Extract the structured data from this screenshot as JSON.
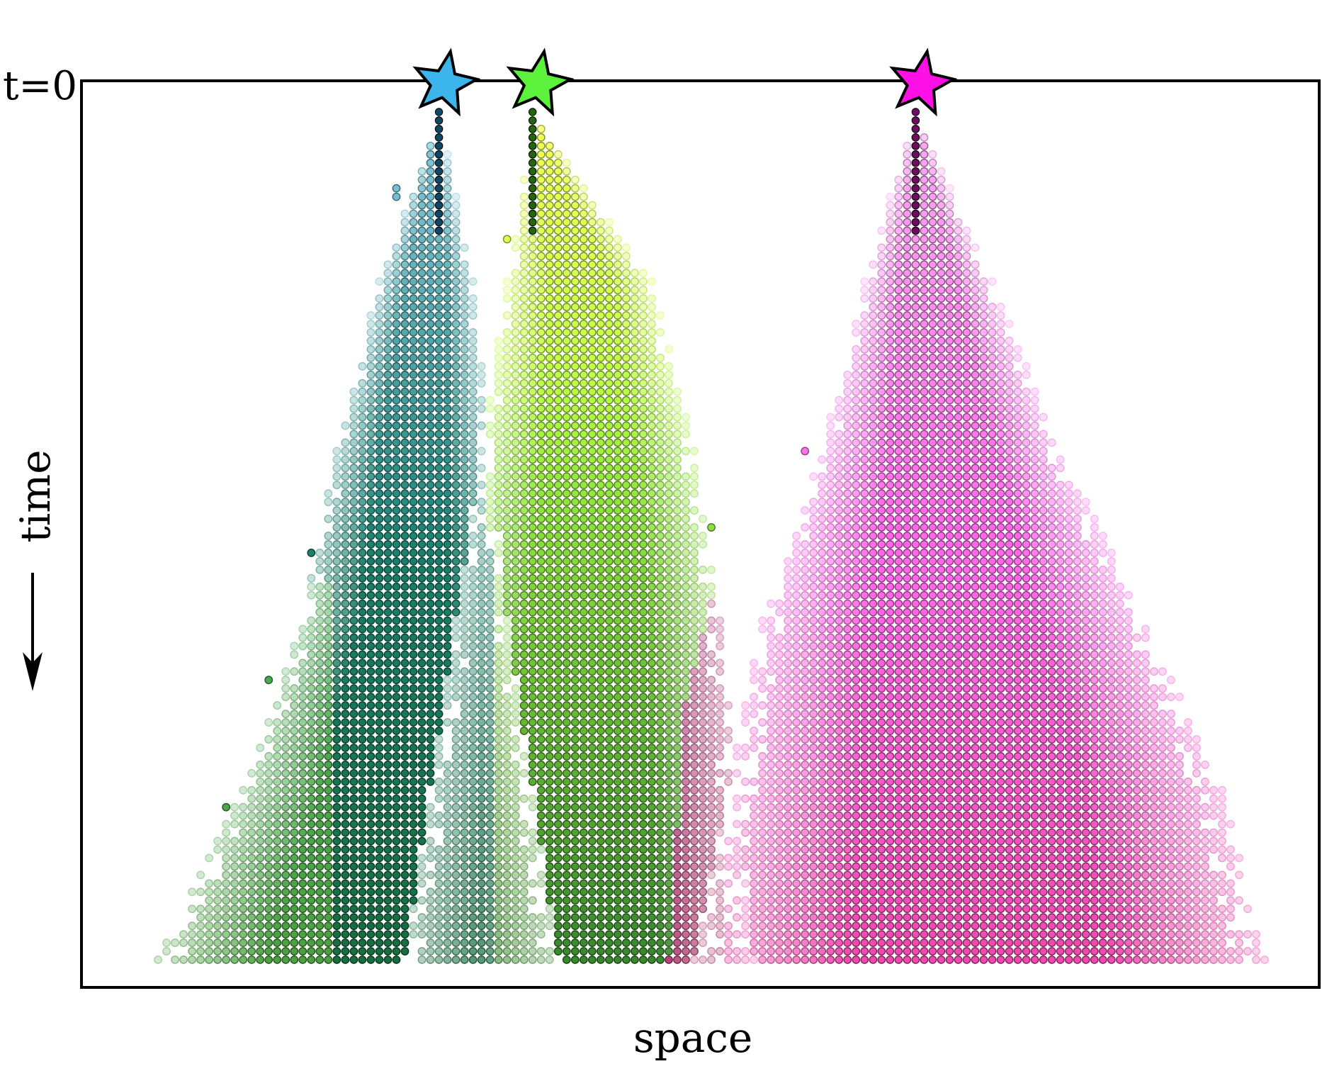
{
  "chart_data": {
    "type": "scatter",
    "xlabel": "space",
    "ylabel": "time",
    "top_label": "t=0",
    "time_arrow": "down",
    "grid": false,
    "legend": "none",
    "xlim": [
      0,
      134
    ],
    "ylim": [
      0,
      100
    ],
    "x_step": 1,
    "t_step": 1,
    "sources": [
      {
        "x": 37,
        "color": "#3cb4ec",
        "cluster_color": "#1fa0e0"
      },
      {
        "x": 48,
        "color": "#5cf23c",
        "cluster_color": "#44e81c"
      },
      {
        "x": 93,
        "color": "#ff10e6",
        "cluster_color": "#f21ad8"
      }
    ],
    "spread_profile": {
      "description_free": true,
      "half_width_at_t": [
        [
          0,
          0
        ],
        [
          10,
          6
        ],
        [
          30,
          11
        ],
        [
          50,
          16
        ],
        [
          70,
          22
        ],
        [
          90,
          30
        ],
        [
          100,
          34
        ]
      ]
    },
    "series": [
      {
        "source": 0,
        "left_reach": [
          [
            0,
            0
          ],
          [
            20,
            7
          ],
          [
            40,
            12
          ],
          [
            60,
            16
          ],
          [
            80,
            23
          ],
          [
            100,
            33
          ]
        ],
        "right_reach": [
          [
            0,
            0
          ],
          [
            20,
            4
          ],
          [
            40,
            6
          ],
          [
            60,
            8
          ],
          [
            80,
            11
          ],
          [
            100,
            14
          ]
        ]
      },
      {
        "source": 1,
        "left_reach": [
          [
            0,
            0
          ],
          [
            20,
            3
          ],
          [
            40,
            6
          ],
          [
            60,
            9
          ],
          [
            80,
            12
          ],
          [
            100,
            15
          ]
        ],
        "right_reach": [
          [
            0,
            0
          ],
          [
            20,
            14
          ],
          [
            40,
            19
          ],
          [
            60,
            22
          ],
          [
            80,
            24
          ],
          [
            100,
            26
          ]
        ]
      },
      {
        "source": 2,
        "left_reach": [
          [
            0,
            0
          ],
          [
            20,
            6
          ],
          [
            40,
            11
          ],
          [
            60,
            18
          ],
          [
            80,
            22
          ],
          [
            100,
            26
          ]
        ],
        "right_reach": [
          [
            0,
            0
          ],
          [
            20,
            9
          ],
          [
            40,
            17
          ],
          [
            60,
            27
          ],
          [
            80,
            36
          ],
          [
            100,
            41
          ]
        ]
      }
    ],
    "boundaries": [
      {
        "between": [
          0,
          1
        ],
        "x_at_t": [
          [
            0,
            42
          ],
          [
            50,
            43
          ],
          [
            100,
            44
          ]
        ]
      },
      {
        "between": [
          1,
          2
        ],
        "x_at_t": [
          [
            0,
            70
          ],
          [
            40,
            73
          ],
          [
            70,
            66
          ],
          [
            100,
            64
          ]
        ]
      }
    ],
    "colors": {
      "dark_green": "#0b5a1c",
      "teal": "#0d7a68",
      "lime": "#a6ff3a",
      "yellow": "#f2ff50",
      "dark_red": "#6a1020",
      "crimson": "#d0104a",
      "pink": "#ff60e8",
      "light_pink": "#f8a8f0",
      "light_blue": "#9ad8f4"
    }
  }
}
